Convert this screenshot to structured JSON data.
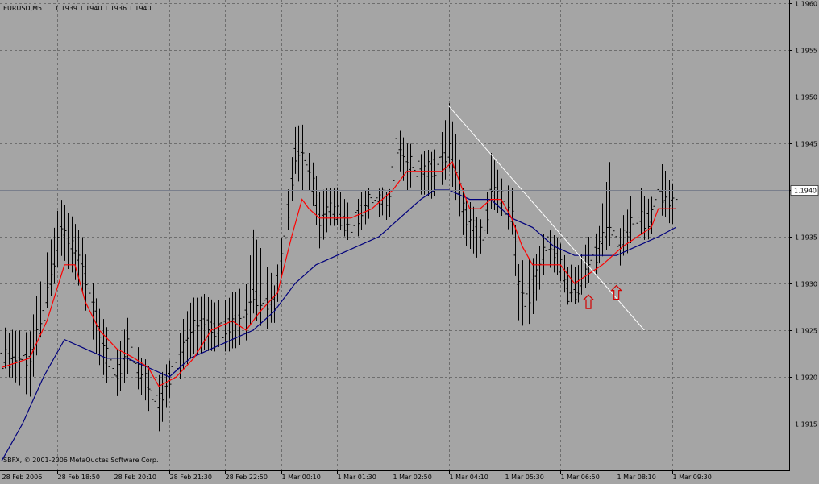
{
  "header": {
    "symbol": "EURUSD,M5",
    "ohlc": "1.1939 1.1940 1.1936 1.1940"
  },
  "footer": {
    "copyright": "SBFX, © 2001-2006 MetaQuotes Software Corp."
  },
  "colors": {
    "background": "#a5a5a5",
    "grid": "#6e6e6e",
    "bars": "#000000",
    "ma_fast": "#ff0000",
    "ma_slow": "#00007c",
    "trendline": "#ffffff",
    "arrows": "#d40000",
    "price_label_bg": "#ffffff"
  },
  "chart_data": {
    "type": "ohlc",
    "symbol": "EURUSD",
    "timeframe": "M5",
    "y_range": [
      1.191,
      1.196
    ],
    "current_price": 1.194,
    "current_price_label": "1.1940",
    "grid": true,
    "grid_style": "dashed",
    "y_ticks": [
      {
        "value": 1.196,
        "label": "1.1960"
      },
      {
        "value": 1.1955,
        "label": "1.1955"
      },
      {
        "value": 1.195,
        "label": "1.1950"
      },
      {
        "value": 1.1945,
        "label": "1.1945"
      },
      {
        "value": 1.194,
        "label": "1.1940"
      },
      {
        "value": 1.1935,
        "label": "1.1935"
      },
      {
        "value": 1.193,
        "label": "1.1930"
      },
      {
        "value": 1.1925,
        "label": "1.1925"
      },
      {
        "value": 1.192,
        "label": "1.1920"
      },
      {
        "value": 1.1915,
        "label": "1.1915"
      }
    ],
    "x_ticks": [
      {
        "bar": 0,
        "label": "28 Feb 2006"
      },
      {
        "bar": 16,
        "label": "28 Feb 18:50"
      },
      {
        "bar": 32,
        "label": "28 Feb 20:10"
      },
      {
        "bar": 48,
        "label": "28 Feb 21:30"
      },
      {
        "bar": 64,
        "label": "28 Feb 22:50"
      },
      {
        "bar": 80,
        "label": "1 Mar 00:10"
      },
      {
        "bar": 96,
        "label": "1 Mar 01:30"
      },
      {
        "bar": 112,
        "label": "1 Mar 02:50"
      },
      {
        "bar": 128,
        "label": "1 Mar 04:10"
      },
      {
        "bar": 144,
        "label": "1 Mar 05:30"
      },
      {
        "bar": 160,
        "label": "1 Mar 06:50"
      },
      {
        "bar": 176,
        "label": "1 Mar 08:10"
      },
      {
        "bar": 192,
        "label": "1 Mar 09:30"
      }
    ],
    "total_bars": 226,
    "anchors": [
      [
        0,
        1.1922,
        1.1925,
        1.1921
      ],
      [
        8,
        1.1922,
        1.1925,
        1.1918
      ],
      [
        11,
        1.1925,
        1.193,
        1.1924
      ],
      [
        15,
        1.1932,
        1.1936,
        1.193
      ],
      [
        17,
        1.1936,
        1.1939,
        1.1933
      ],
      [
        20,
        1.1934,
        1.1937,
        1.1931
      ],
      [
        23,
        1.1932,
        1.1935,
        1.1929
      ],
      [
        26,
        1.1928,
        1.193,
        1.1924
      ],
      [
        30,
        1.1922,
        1.1925,
        1.1919
      ],
      [
        33,
        1.192,
        1.1923,
        1.1918
      ],
      [
        36,
        1.1923,
        1.1926,
        1.192
      ],
      [
        40,
        1.192,
        1.1922,
        1.1918
      ],
      [
        45,
        1.1917,
        1.192,
        1.1914
      ],
      [
        48,
        1.192,
        1.1922,
        1.1918
      ],
      [
        51,
        1.1922,
        1.1925,
        1.192
      ],
      [
        54,
        1.1925,
        1.1928,
        1.1922
      ],
      [
        58,
        1.1926,
        1.1929,
        1.1923
      ],
      [
        62,
        1.1925,
        1.1928,
        1.1923
      ],
      [
        66,
        1.1926,
        1.1929,
        1.1923
      ],
      [
        70,
        1.1927,
        1.193,
        1.1924
      ],
      [
        72,
        1.1929,
        1.1936,
        1.1927
      ],
      [
        75,
        1.1928,
        1.1933,
        1.1925
      ],
      [
        78,
        1.1928,
        1.193,
        1.1926
      ],
      [
        81,
        1.1935,
        1.1937,
        1.1933
      ],
      [
        84,
        1.1944,
        1.1947,
        1.1942
      ],
      [
        86,
        1.1944,
        1.1947,
        1.194
      ],
      [
        88,
        1.1942,
        1.1944,
        1.194
      ],
      [
        91,
        1.1937,
        1.194,
        1.1934
      ],
      [
        94,
        1.1938,
        1.194,
        1.1936
      ],
      [
        97,
        1.1937,
        1.194,
        1.1936
      ],
      [
        100,
        1.1936,
        1.1938,
        1.1934
      ],
      [
        103,
        1.1938,
        1.194,
        1.1936
      ],
      [
        106,
        1.1939,
        1.194,
        1.1937
      ],
      [
        111,
        1.1939,
        1.194,
        1.1937
      ],
      [
        113,
        1.1945,
        1.1947,
        1.1943
      ],
      [
        116,
        1.1943,
        1.1945,
        1.194
      ],
      [
        119,
        1.1942,
        1.1944,
        1.194
      ],
      [
        122,
        1.1942,
        1.1944,
        1.1939
      ],
      [
        125,
        1.1943,
        1.1945,
        1.194
      ],
      [
        128,
        1.1944,
        1.1949,
        1.1942
      ],
      [
        130,
        1.1942,
        1.1946,
        1.1939
      ],
      [
        132,
        1.1938,
        1.194,
        1.1935
      ],
      [
        135,
        1.1936,
        1.1938,
        1.1933
      ],
      [
        138,
        1.1935,
        1.1936,
        1.1933
      ],
      [
        140,
        1.194,
        1.1944,
        1.1938
      ],
      [
        143,
        1.1939,
        1.1941,
        1.1937
      ],
      [
        146,
        1.1937,
        1.194,
        1.1935
      ],
      [
        148,
        1.193,
        1.1932,
        1.1926
      ],
      [
        150,
        1.1928,
        1.1933,
        1.1925
      ],
      [
        153,
        1.1931,
        1.1933,
        1.1928
      ],
      [
        156,
        1.1934,
        1.1936,
        1.1932
      ],
      [
        159,
        1.1933,
        1.1935,
        1.1931
      ],
      [
        162,
        1.1929,
        1.1932,
        1.1928
      ],
      [
        165,
        1.1929,
        1.1932,
        1.1928
      ],
      [
        168,
        1.1932,
        1.1935,
        1.193
      ],
      [
        171,
        1.1934,
        1.1936,
        1.1932
      ],
      [
        174,
        1.1936,
        1.1943,
        1.1934
      ],
      [
        177,
        1.1934,
        1.1936,
        1.1932
      ],
      [
        180,
        1.1936,
        1.1939,
        1.1934
      ],
      [
        183,
        1.1937,
        1.194,
        1.1935
      ],
      [
        186,
        1.1937,
        1.1939,
        1.1935
      ],
      [
        188,
        1.194,
        1.1944,
        1.1938
      ],
      [
        190,
        1.1939,
        1.1942,
        1.1937
      ],
      [
        193,
        1.1939,
        1.194,
        1.1936
      ]
    ],
    "ma_fast": [
      [
        0,
        1.1921
      ],
      [
        8,
        1.1922
      ],
      [
        13,
        1.1926
      ],
      [
        18,
        1.1932
      ],
      [
        21,
        1.1932
      ],
      [
        24,
        1.1928
      ],
      [
        28,
        1.1925
      ],
      [
        33,
        1.1923
      ],
      [
        38,
        1.1922
      ],
      [
        42,
        1.1921
      ],
      [
        45,
        1.1919
      ],
      [
        50,
        1.192
      ],
      [
        55,
        1.1922
      ],
      [
        60,
        1.1925
      ],
      [
        66,
        1.1926
      ],
      [
        70,
        1.1925
      ],
      [
        74,
        1.1927
      ],
      [
        79,
        1.1929
      ],
      [
        83,
        1.1935
      ],
      [
        86,
        1.1939
      ],
      [
        88,
        1.1938
      ],
      [
        91,
        1.1937
      ],
      [
        95,
        1.1937
      ],
      [
        100,
        1.1937
      ],
      [
        106,
        1.1938
      ],
      [
        112,
        1.194
      ],
      [
        116,
        1.1942
      ],
      [
        121,
        1.1942
      ],
      [
        126,
        1.1942
      ],
      [
        129,
        1.1943
      ],
      [
        131,
        1.1941
      ],
      [
        134,
        1.1938
      ],
      [
        137,
        1.1938
      ],
      [
        140,
        1.1939
      ],
      [
        143,
        1.1939
      ],
      [
        146,
        1.1937
      ],
      [
        149,
        1.1934
      ],
      [
        152,
        1.1932
      ],
      [
        156,
        1.1932
      ],
      [
        160,
        1.1932
      ],
      [
        164,
        1.193
      ],
      [
        168,
        1.1931
      ],
      [
        172,
        1.1932
      ],
      [
        175,
        1.1933
      ],
      [
        178,
        1.1934
      ],
      [
        182,
        1.1935
      ],
      [
        186,
        1.1936
      ],
      [
        188,
        1.1938
      ],
      [
        190,
        1.1938
      ],
      [
        193,
        1.1938
      ]
    ],
    "ma_slow": [
      [
        0,
        1.1911
      ],
      [
        6,
        1.1915
      ],
      [
        12,
        1.192
      ],
      [
        18,
        1.1924
      ],
      [
        24,
        1.1923
      ],
      [
        30,
        1.1922
      ],
      [
        36,
        1.1922
      ],
      [
        42,
        1.1921
      ],
      [
        48,
        1.192
      ],
      [
        54,
        1.1922
      ],
      [
        60,
        1.1923
      ],
      [
        66,
        1.1924
      ],
      [
        72,
        1.1925
      ],
      [
        78,
        1.1927
      ],
      [
        84,
        1.193
      ],
      [
        90,
        1.1932
      ],
      [
        96,
        1.1933
      ],
      [
        102,
        1.1934
      ],
      [
        108,
        1.1935
      ],
      [
        114,
        1.1937
      ],
      [
        120,
        1.1939
      ],
      [
        124,
        1.194
      ],
      [
        128,
        1.194
      ],
      [
        134,
        1.1939
      ],
      [
        140,
        1.1939
      ],
      [
        146,
        1.1937
      ],
      [
        152,
        1.1936
      ],
      [
        158,
        1.1934
      ],
      [
        164,
        1.1933
      ],
      [
        170,
        1.1933
      ],
      [
        176,
        1.1933
      ],
      [
        182,
        1.1934
      ],
      [
        188,
        1.1935
      ],
      [
        193,
        1.1936
      ]
    ],
    "trendline": [
      [
        128,
        1.1949
      ],
      [
        184,
        1.1925
      ]
    ],
    "arrows_up": [
      [
        168,
        1.1928
      ],
      [
        176,
        1.1929
      ]
    ]
  }
}
